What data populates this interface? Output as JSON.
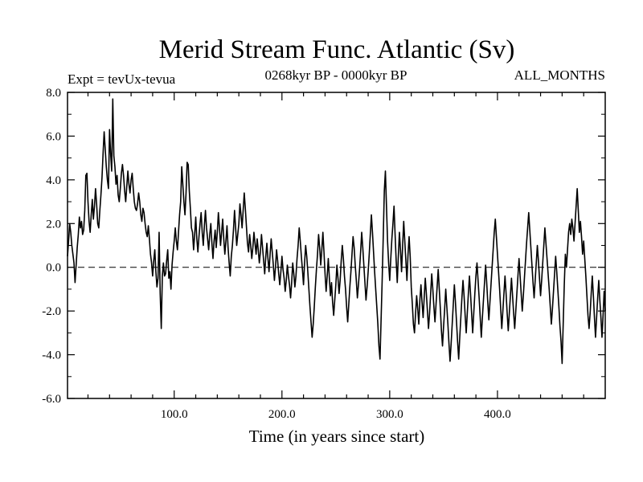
{
  "chart_data": {
    "type": "line",
    "title": "Merid Stream Func. Atlantic (Sv)",
    "subtitle_left": "Expt = tevUx-tevua",
    "subtitle_center": "0268kyr BP - 0000kyr BP",
    "subtitle_right": "ALL_MONTHS",
    "xlabel": "Time (in years since start)",
    "ylabel": "",
    "xlim": [
      1,
      500
    ],
    "ylim": [
      -6,
      8
    ],
    "x_ticks": [
      100,
      200,
      300,
      400
    ],
    "x_tick_labels": [
      "100.0",
      "200.0",
      "300.0",
      "400.0"
    ],
    "y_ticks": [
      -6,
      -4,
      -2,
      0,
      2,
      4,
      6,
      8
    ],
    "y_tick_labels": [
      "-6.0",
      "-4.0",
      "-2.0",
      "0.0",
      "2.0",
      "4.0",
      "6.0",
      "8.0"
    ],
    "reference_line": {
      "y": 0,
      "style": "dashed"
    },
    "series": [
      {
        "name": "Merid Stream Func. Atlantic",
        "x_start": 1,
        "x_step": 1,
        "values": [
          0.5,
          1.2,
          2.0,
          1.6,
          1.0,
          0.6,
          0.2,
          -0.7,
          0.1,
          0.9,
          1.5,
          2.3,
          1.8,
          2.1,
          1.5,
          1.7,
          2.6,
          4.2,
          4.3,
          3.0,
          2.1,
          1.6,
          2.4,
          3.1,
          2.2,
          2.8,
          3.6,
          2.9,
          2.0,
          1.8,
          2.6,
          3.3,
          4.1,
          5.2,
          6.2,
          5.4,
          4.6,
          4.0,
          3.6,
          6.3,
          5.2,
          4.4,
          7.7,
          5.1,
          4.6,
          3.8,
          4.2,
          3.3,
          3.0,
          3.6,
          4.3,
          4.7,
          4.2,
          3.5,
          3.0,
          3.7,
          4.4,
          3.8,
          3.4,
          4.0,
          4.3,
          3.6,
          3.0,
          2.7,
          2.6,
          2.9,
          3.4,
          3.0,
          2.4,
          2.1,
          2.7,
          2.5,
          2.0,
          1.6,
          1.4,
          1.9,
          1.3,
          0.6,
          0.2,
          -0.4,
          0.3,
          0.8,
          -0.2,
          -0.9,
          -0.5,
          1.6,
          -1.2,
          -2.8,
          -0.4,
          0.2,
          -0.4,
          -0.3,
          0.3,
          0.8,
          -0.5,
          -0.2,
          -1.0,
          0.1,
          0.7,
          1.2,
          1.8,
          1.2,
          0.8,
          1.6,
          2.4,
          3.0,
          4.6,
          3.8,
          3.0,
          2.4,
          3.4,
          4.8,
          4.7,
          3.5,
          2.7,
          1.8,
          1.6,
          0.8,
          1.5,
          2.3,
          1.3,
          0.7,
          1.4,
          2.0,
          2.5,
          1.6,
          1.0,
          1.9,
          2.6,
          1.8,
          1.3,
          0.8,
          1.5,
          2.0,
          1.1,
          0.4,
          1.2,
          1.7,
          0.9,
          1.6,
          2.5,
          1.8,
          1.0,
          1.6,
          2.2,
          1.3,
          0.6,
          1.2,
          1.9,
          0.9,
          0.2,
          -0.4,
          0.5,
          1.0,
          1.7,
          2.6,
          1.8,
          1.0,
          1.5,
          2.0,
          2.9,
          2.4,
          1.8,
          2.6,
          3.4,
          2.7,
          1.9,
          1.1,
          0.7,
          1.5,
          1.0,
          0.4,
          0.9,
          1.6,
          1.1,
          0.6,
          1.3,
          0.8,
          0.2,
          0.7,
          1.5,
          0.9,
          0.3,
          -0.3,
          0.5,
          1.1,
          0.4,
          -0.2,
          0.6,
          1.3,
          0.7,
          0.1,
          -0.6,
          0.0,
          0.8,
          0.3,
          -0.3,
          -0.8,
          -0.2,
          0.5,
          -0.1,
          -0.5,
          -1.1,
          -0.6,
          0.1,
          -0.4,
          -0.8,
          -1.4,
          -0.7,
          0.2,
          -0.3,
          -0.9,
          -0.4,
          0.4,
          1.0,
          1.8,
          1.2,
          0.5,
          -0.1,
          -0.8,
          0.2,
          1.0,
          0.5,
          -0.2,
          -1.0,
          -1.8,
          -2.5,
          -3.2,
          -2.6,
          -1.8,
          -0.9,
          -0.1,
          0.6,
          1.5,
          0.9,
          0.1,
          0.8,
          1.6,
          0.7,
          -0.3,
          -1.1,
          -0.4,
          0.4,
          -0.5,
          -1.3,
          -0.7,
          -1.6,
          -2.2,
          -1.5,
          -0.8,
          0.1,
          -0.5,
          -1.2,
          -0.6,
          0.3,
          1.0,
          0.4,
          -0.4,
          -1.0,
          -1.8,
          -2.5,
          -1.7,
          -0.9,
          -0.2,
          0.6,
          1.4,
          0.9,
          0.1,
          -0.6,
          -1.4,
          -0.8,
          -0.1,
          0.7,
          1.6,
          0.9,
          0.1,
          -0.7,
          -1.5,
          -0.9,
          -0.2,
          0.6,
          1.5,
          2.4,
          1.6,
          0.7,
          -0.2,
          -1.0,
          -1.8,
          -2.6,
          -3.6,
          -4.2,
          -2.4,
          -0.6,
          1.4,
          3.5,
          4.4,
          2.8,
          1.2,
          0.2,
          -0.6,
          0.4,
          1.3,
          2.0,
          2.8,
          1.5,
          0.3,
          -0.7,
          0.5,
          1.6,
          0.8,
          -0.2,
          1.0,
          2.1,
          1.2,
          0.3,
          -0.6,
          0.6,
          1.4,
          0.5,
          -0.9,
          -1.7,
          -2.6,
          -3.0,
          -2.1,
          -1.3,
          -1.9,
          -2.6,
          -1.5,
          -0.8,
          -1.6,
          -2.3,
          -1.4,
          -0.5,
          -1.2,
          -2.0,
          -2.8,
          -2.1,
          -1.2,
          -0.3,
          -1.0,
          -1.8,
          -2.5,
          -1.7,
          -0.9,
          -0.1,
          -1.0,
          -1.9,
          -2.9,
          -3.6,
          -2.7,
          -1.9,
          -1.0,
          -1.8,
          -2.6,
          -3.5,
          -4.3,
          -3.5,
          -2.6,
          -1.7,
          -0.8,
          -1.6,
          -2.5,
          -3.4,
          -4.2,
          -3.2,
          -2.3,
          -1.4,
          -0.6,
          -1.3,
          -2.2,
          -3.0,
          -2.1,
          -1.2,
          -0.4,
          -1.2,
          -2.1,
          -3.0,
          -2.1,
          -1.2,
          -0.4,
          0.2,
          -0.6,
          -1.4,
          -2.3,
          -3.2,
          -2.3,
          -1.5,
          -0.7,
          0.1,
          -0.7,
          -1.6,
          -2.4,
          -1.6,
          -0.8,
          0.0,
          0.8,
          1.6,
          2.2,
          1.4,
          0.6,
          -0.2,
          -1.0,
          -1.9,
          -2.8,
          -2.0,
          -1.2,
          -0.4,
          -1.2,
          -2.1,
          -2.9,
          -2.1,
          -1.3,
          -0.5,
          -1.3,
          -2.1,
          -2.8,
          -2.0,
          -1.2,
          -0.4,
          0.4,
          -0.4,
          -1.2,
          -2.0,
          -1.3,
          -0.5,
          0.3,
          1.1,
          1.8,
          2.5,
          1.7,
          0.9,
          0.1,
          -0.7,
          -1.4,
          -0.6,
          0.2,
          1.0,
          0.3,
          -0.5,
          -1.3,
          -0.6,
          0.2,
          1.0,
          1.8,
          1.1,
          0.4,
          -0.3,
          -1.0,
          -1.8,
          -2.6,
          -1.9,
          -1.1,
          -0.3,
          0.5,
          -0.2,
          -1.0,
          -1.8,
          -2.7,
          -3.4,
          -4.4,
          -2.6,
          -0.8,
          0.6,
          0.0,
          0.8,
          1.6,
          2.0,
          1.5,
          2.2,
          1.8,
          1.2,
          2.0,
          2.8,
          3.6,
          2.6,
          1.6,
          2.1,
          1.4,
          0.6,
          1.2,
          0.4,
          -0.4,
          -1.3,
          -2.2,
          -2.8,
          -2.1,
          -1.2,
          -0.4,
          -1.3,
          -2.3,
          -3.2,
          -2.3,
          -1.4,
          -0.6,
          -1.5,
          -2.3,
          -3.2,
          -2.2,
          -1.1,
          -2.0
        ]
      }
    ]
  }
}
